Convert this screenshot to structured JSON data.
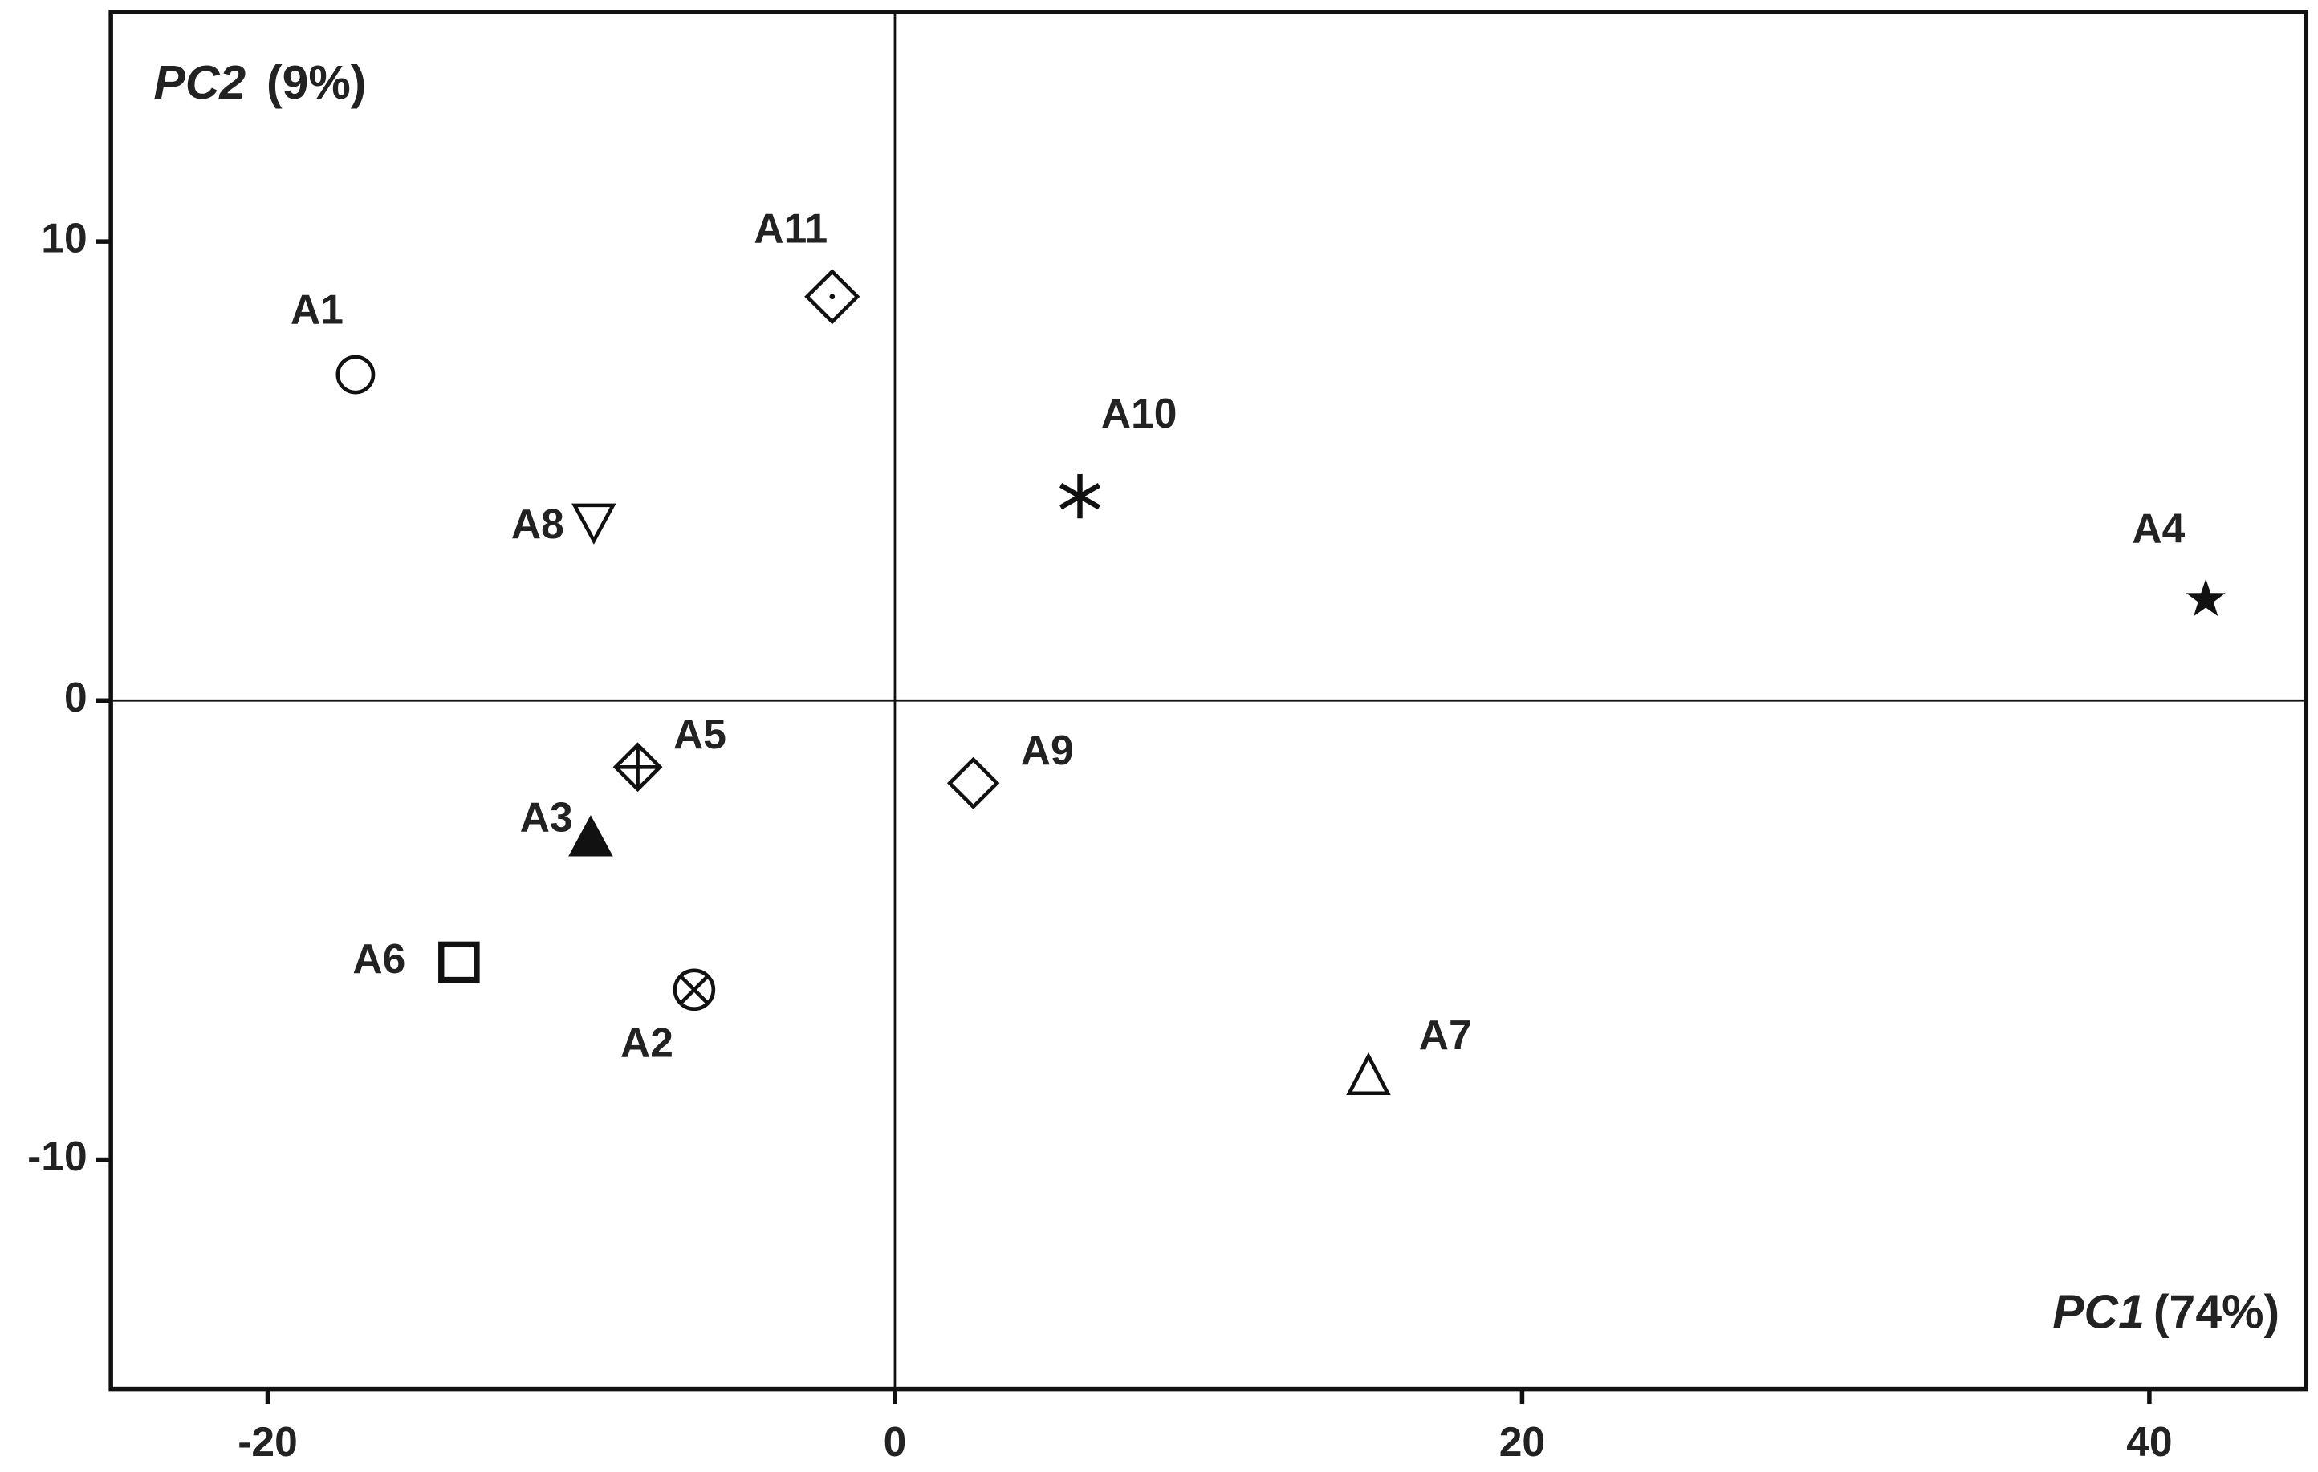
{
  "chart_data": {
    "type": "scatter",
    "x_label": "PC1",
    "x_label_pct": "(74%)",
    "y_label": "PC2",
    "y_label_pct": "(9%)",
    "xlim": [
      -25,
      45
    ],
    "ylim": [
      -15,
      15
    ],
    "xticks": [
      -20,
      0,
      20,
      40
    ],
    "yticks": [
      -10,
      0,
      10
    ],
    "series": [
      {
        "name": "A1",
        "marker": "circle",
        "x": [
          -17.2
        ],
        "y": [
          7.1
        ]
      },
      {
        "name": "A2",
        "marker": "circle-x",
        "x": [
          -6.4
        ],
        "y": [
          -6.3
        ]
      },
      {
        "name": "A3",
        "marker": "triangle-filled",
        "x": [
          -9.7
        ],
        "y": [
          -3.0
        ]
      },
      {
        "name": "A4",
        "marker": "star",
        "x": [
          41.8
        ],
        "y": [
          2.2
        ]
      },
      {
        "name": "A5",
        "marker": "diamond-plus",
        "x": [
          -8.2
        ],
        "y": [
          -1.45
        ]
      },
      {
        "name": "A6",
        "marker": "square",
        "x": [
          -13.9
        ],
        "y": [
          -5.7
        ]
      },
      {
        "name": "A7",
        "marker": "triangle",
        "x": [
          15.1
        ],
        "y": [
          -8.2
        ]
      },
      {
        "name": "A8",
        "marker": "triangle-down",
        "x": [
          -9.6
        ],
        "y": [
          3.9
        ]
      },
      {
        "name": "A9",
        "marker": "diamond",
        "x": [
          2.5
        ],
        "y": [
          -1.8
        ]
      },
      {
        "name": "A10",
        "marker": "asterisk",
        "x": [
          5.9
        ],
        "y": [
          4.45
        ]
      },
      {
        "name": "A11",
        "marker": "diamond-dot",
        "x": [
          -2.0
        ],
        "y": [
          8.8
        ]
      }
    ]
  }
}
